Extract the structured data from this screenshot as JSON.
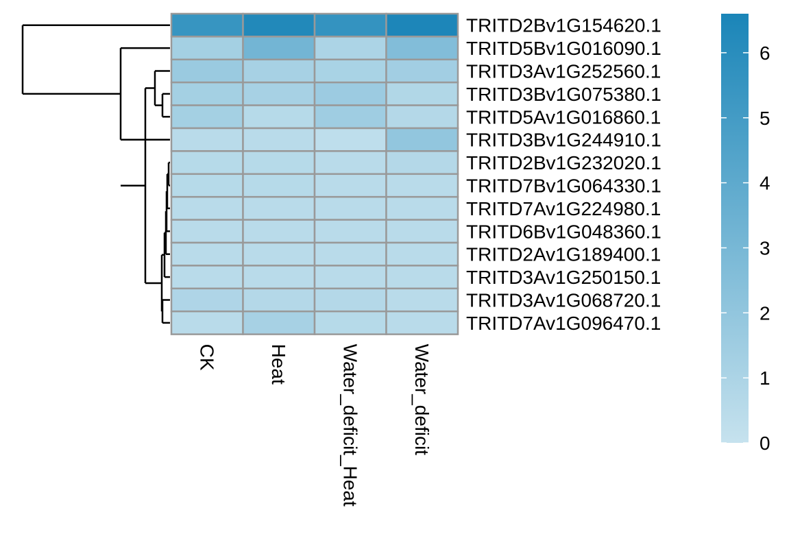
{
  "chart_data": {
    "type": "heatmap",
    "columns": [
      "CK",
      "Heat",
      "Water_deficit_Heat",
      "Water_deficit"
    ],
    "rows": [
      "TRITD2Bv1G154620.1",
      "TRITD5Bv1G016090.1",
      "TRITD3Av1G252560.1",
      "TRITD3Bv1G075380.1",
      "TRITD5Av1G016860.1",
      "TRITD3Bv1G244910.1",
      "TRITD2Bv1G232020.1",
      "TRITD7Bv1G064330.1",
      "TRITD7Av1G224980.1",
      "TRITD6Bv1G048360.1",
      "TRITD2Av1G189400.1",
      "TRITD3Av1G250150.1",
      "TRITD3Av1G068720.1",
      "TRITD7Av1G096470.1"
    ],
    "values": [
      [
        5.5,
        6.3,
        5.6,
        6.5
      ],
      [
        1.3,
        3.2,
        1.0,
        2.6
      ],
      [
        1.7,
        1.2,
        1.1,
        1.4
      ],
      [
        1.3,
        1.2,
        1.6,
        0.8
      ],
      [
        1.3,
        0.6,
        1.5,
        0.7
      ],
      [
        0.5,
        0.5,
        0.3,
        2.0
      ],
      [
        0.6,
        0.6,
        0.5,
        0.7
      ],
      [
        0.6,
        0.6,
        0.5,
        0.5
      ],
      [
        0.5,
        0.5,
        0.5,
        0.5
      ],
      [
        0.5,
        0.5,
        0.5,
        0.5
      ],
      [
        0.5,
        0.5,
        0.5,
        0.5
      ],
      [
        0.5,
        0.5,
        0.5,
        0.5
      ],
      [
        0.9,
        0.7,
        0.7,
        0.5
      ],
      [
        0.5,
        1.2,
        0.6,
        0.5
      ]
    ],
    "colorbar": {
      "ticks": [
        0,
        1,
        2,
        3,
        4,
        5,
        6
      ],
      "range": [
        0,
        6.6
      ],
      "colors": [
        "#c6e2ee",
        "#1a85b8"
      ]
    },
    "cell_border_color": "#999999",
    "dendrogram": "left",
    "legend_position": "right"
  }
}
